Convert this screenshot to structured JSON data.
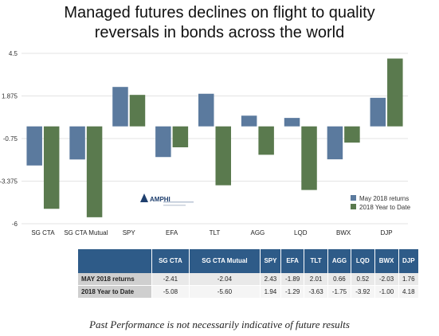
{
  "title_line1": "Managed futures declines on flight to quality",
  "title_line2": "reversals in bonds across the world",
  "footnote": "Past Performance is not necessarily indicative of future results",
  "logo": {
    "icon": "amphi-triangle-logo",
    "text": "AMPHI"
  },
  "colors": {
    "may": "#5b7a9e",
    "ytd": "#5a7a4e",
    "header": "#2e5b88"
  },
  "chart_data": {
    "type": "bar",
    "categories": [
      "SG CTA",
      "SG CTA Mutual",
      "SPY",
      "EFA",
      "TLT",
      "AGG",
      "LQD",
      "BWX",
      "DJP"
    ],
    "series": [
      {
        "name": "May 2018 returns",
        "values": [
          -2.41,
          -2.04,
          2.43,
          -1.89,
          2.01,
          0.66,
          0.52,
          -2.03,
          1.76
        ]
      },
      {
        "name": "2018 Year to Date",
        "values": [
          -5.08,
          -5.6,
          1.94,
          -1.29,
          -3.63,
          -1.75,
          -3.92,
          -1.0,
          4.18
        ]
      }
    ],
    "y_ticks": [
      "4.5",
      "1.875",
      "-0.75",
      "-3.375",
      "-6"
    ],
    "ylim": [
      -6,
      4.5
    ],
    "grid": true,
    "legend_position": "bottom-right"
  },
  "table": {
    "headers": [
      "SG CTA",
      "SG CTA Mutual",
      "SPY",
      "EFA",
      "TLT",
      "AGG",
      "LQD",
      "BWX",
      "DJP"
    ],
    "rows": [
      {
        "label": "MAY 2018 returns",
        "cells": [
          "-2.41",
          "-2.04",
          "2.43",
          "-1.89",
          "2.01",
          "0.66",
          "0.52",
          "-2.03",
          "1.76"
        ]
      },
      {
        "label": "2018 Year to Date",
        "cells": [
          "-5.08",
          "-5.60",
          "1.94",
          "-1.29",
          "-3.63",
          "-1.75",
          "-3.92",
          "-1.00",
          "4.18"
        ]
      }
    ]
  }
}
